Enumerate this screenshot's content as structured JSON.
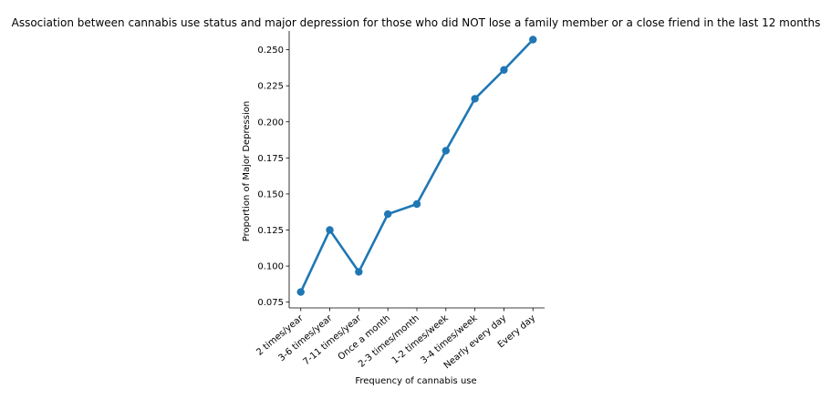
{
  "chart_data": {
    "type": "line",
    "title": "Association between cannabis use status and major depression for those who did NOT lose a family member or a close friend in the last 12 months",
    "xlabel": "Frequency of cannabis use",
    "ylabel": "Proportion of Major Depression",
    "categories": [
      "2 times/year",
      "3-6 times/year",
      "7-11 times/year",
      "Once a month",
      "2-3 times/month",
      "1-2 times/week",
      "3-4 times/week",
      "Nearly every day",
      "Every day"
    ],
    "values": [
      0.082,
      0.125,
      0.096,
      0.136,
      0.143,
      0.18,
      0.216,
      0.236,
      0.257
    ],
    "yticks": [
      "0.075",
      "0.100",
      "0.125",
      "0.150",
      "0.175",
      "0.200",
      "0.225",
      "0.250"
    ],
    "ylim": [
      0.071,
      0.263
    ],
    "grid": false,
    "color": "#1f77b4"
  }
}
